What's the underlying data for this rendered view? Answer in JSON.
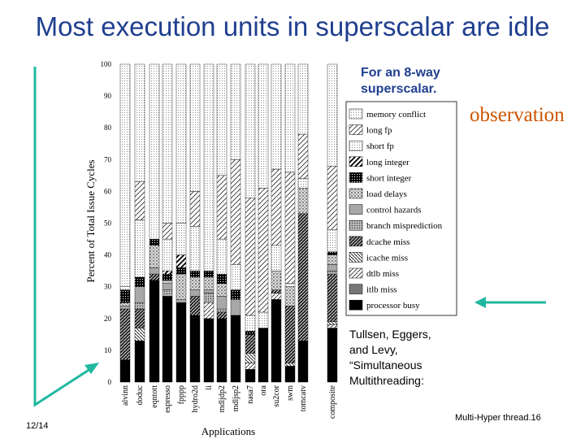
{
  "slide": {
    "title": "Most execution units in superscalar are idle",
    "note_line1": "For an 8-way",
    "note_line2": "superscalar.",
    "observation": "observation",
    "citation_lines": [
      "Tullsen, Eggers,",
      "and Levy,",
      "“Simultaneous",
      "Multithreading:"
    ],
    "page_number": "12/14",
    "footer": "Multi-Hyper thread.16"
  },
  "colors": {
    "title": "#1f3f8f",
    "observation": "#cc5500",
    "arrow": "#20b8a0"
  },
  "chart_data": {
    "type": "bar",
    "stacked": true,
    "ylabel": "Percent of Total Issue Cycles",
    "xlabel": "Applications",
    "ylim": [
      0,
      100
    ],
    "yticks": [
      "0",
      "10",
      "20",
      "30",
      "40",
      "50",
      "60",
      "70",
      "80",
      "90",
      "100"
    ],
    "categories": [
      "alvinn",
      "doduc",
      "eqntott",
      "espresso",
      "fpppp",
      "hydro2d",
      "li",
      "mdljdp2",
      "mdljsp2",
      "nasa7",
      "ora",
      "su2cor",
      "swm",
      "tomcatv",
      "composite"
    ],
    "legend": [
      "memory conflict",
      "long fp",
      "short fp",
      "long integer",
      "short integer",
      "load delays",
      "control hazards",
      "branch misprediction",
      "dcache miss",
      "icache miss",
      "dtlb miss",
      "itlb miss",
      "processor busy"
    ],
    "series": [
      {
        "name": "processor busy",
        "values": [
          7,
          13,
          32,
          27,
          25,
          21,
          20,
          20,
          21,
          4,
          17,
          26,
          5,
          13,
          17
        ]
      },
      {
        "name": "itlb miss",
        "values": [
          0,
          0,
          0,
          0,
          0,
          0,
          0,
          0,
          0,
          0,
          0,
          0,
          0,
          0,
          0
        ]
      },
      {
        "name": "dtlb miss",
        "values": [
          0,
          0,
          0,
          0,
          0,
          0,
          5,
          0,
          0,
          2,
          0,
          2,
          0,
          0,
          1
        ]
      },
      {
        "name": "icache miss",
        "values": [
          0,
          4,
          0,
          0,
          0,
          0,
          0,
          0,
          0,
          3,
          0,
          0,
          1,
          0,
          1
        ]
      },
      {
        "name": "dcache miss",
        "values": [
          16,
          6,
          2,
          0,
          0,
          6,
          0,
          2,
          0,
          6,
          0,
          1,
          18,
          40,
          15
        ]
      },
      {
        "name": "branch misprediction",
        "values": [
          0,
          2,
          0,
          2,
          0,
          0,
          3,
          1,
          0,
          0,
          0,
          0,
          0,
          0,
          1
        ]
      },
      {
        "name": "control hazards",
        "values": [
          1,
          5,
          2,
          2,
          1,
          2,
          1,
          4,
          5,
          0,
          0,
          0,
          0,
          0,
          2
        ]
      },
      {
        "name": "load delays",
        "values": [
          1,
          0,
          7,
          1,
          8,
          4,
          4,
          4,
          0,
          0,
          0,
          6,
          6,
          8,
          3
        ]
      },
      {
        "name": "short integer",
        "values": [
          4,
          3,
          2,
          2,
          2,
          2,
          2,
          3,
          3,
          1,
          0,
          0,
          0,
          0,
          1
        ]
      },
      {
        "name": "long integer",
        "values": [
          0,
          0,
          0,
          1,
          4,
          0,
          0,
          0,
          0,
          0,
          0,
          0,
          0,
          0,
          0
        ]
      },
      {
        "name": "short fp",
        "values": [
          1,
          18,
          0,
          10,
          10,
          14,
          0,
          11,
          8,
          5,
          5,
          8,
          1,
          3,
          7
        ]
      },
      {
        "name": "long fp",
        "values": [
          0,
          12,
          0,
          5,
          0,
          11,
          0,
          20,
          33,
          37,
          39,
          24,
          35,
          14,
          20
        ]
      },
      {
        "name": "memory conflict",
        "values": [
          70,
          37,
          55,
          50,
          50,
          40,
          65,
          35,
          30,
          42,
          39,
          33,
          34,
          22,
          32
        ]
      }
    ]
  }
}
